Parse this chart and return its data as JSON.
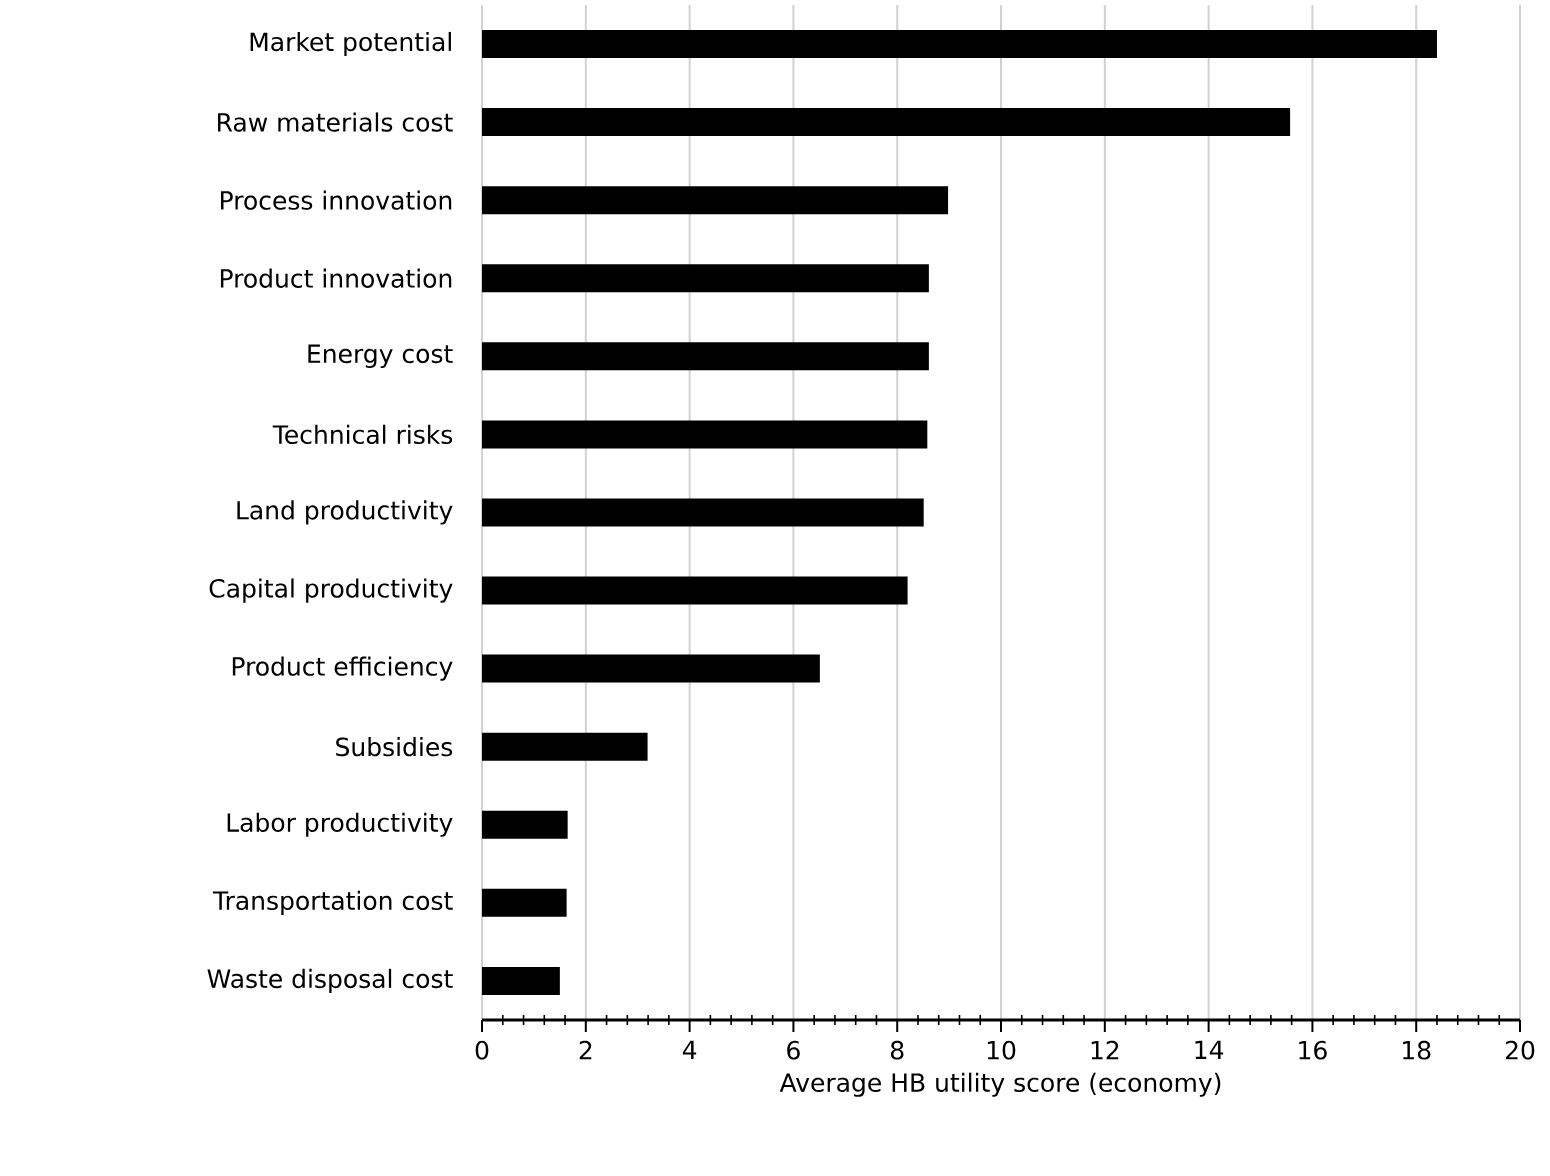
{
  "chart_data": {
    "type": "bar",
    "orientation": "horizontal",
    "categories": [
      "Market potential",
      "Raw materials cost",
      "Process innovation",
      "Product innovation",
      "Energy cost",
      "Technical risks",
      "Land productivity",
      "Capital productivity",
      "Product efficiency",
      "Subsidies",
      "Labor productivity",
      "Transportation cost",
      "Waste disposal cost"
    ],
    "values": [
      18.4,
      15.57,
      8.98,
      8.61,
      8.61,
      8.58,
      8.51,
      8.2,
      6.51,
      3.19,
      1.65,
      1.63,
      1.5
    ],
    "color": "#000000",
    "xlabel": "Average HB utility score (economy)",
    "xlim": [
      0,
      20
    ],
    "xticks": [
      0,
      2,
      4,
      6,
      8,
      10,
      12,
      14,
      16,
      18,
      20
    ],
    "grid": "x"
  }
}
